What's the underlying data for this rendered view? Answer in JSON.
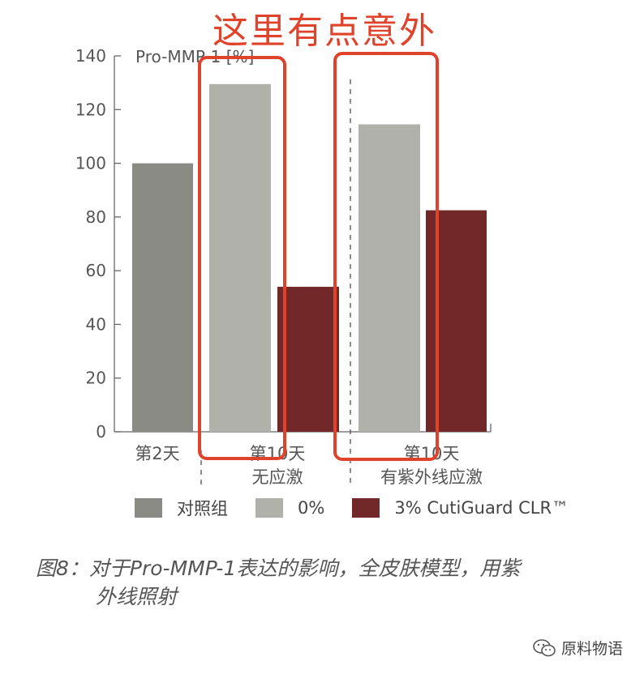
{
  "annotation": {
    "title": "这里有点意外",
    "color": "#e0432b"
  },
  "chart_data": {
    "type": "bar",
    "ylabel": "Pro-MMP-1 [%]",
    "ylim": [
      0,
      140
    ],
    "yticks": [
      "0",
      "20",
      "40",
      "60",
      "80",
      "100",
      "120",
      "140"
    ],
    "groups": [
      {
        "label_line1": "第2天",
        "label_line2": ""
      },
      {
        "label_line1": "第10天",
        "label_line2": "无应激"
      },
      {
        "label_line1": "第10天",
        "label_line2": "有紫外线应激"
      }
    ],
    "series": [
      {
        "name": "对照组",
        "color": "#8b8b85",
        "values": [
          100,
          null,
          null
        ]
      },
      {
        "name": "0%",
        "color": "#b1b1ab",
        "values": [
          null,
          129.5,
          114.5
        ]
      },
      {
        "name": "3% CutiGuard CLR™",
        "color": "#722828",
        "values": [
          null,
          54,
          82.5
        ]
      }
    ],
    "grid": false,
    "legend_position": "bottom"
  },
  "caption": {
    "line1": "图8：对于Pro-MMP-1表达的影响，全皮肤模型，用紫",
    "line2": "外线照射"
  },
  "watermark": {
    "text": "原料物语",
    "icon": "wechat-icon"
  }
}
